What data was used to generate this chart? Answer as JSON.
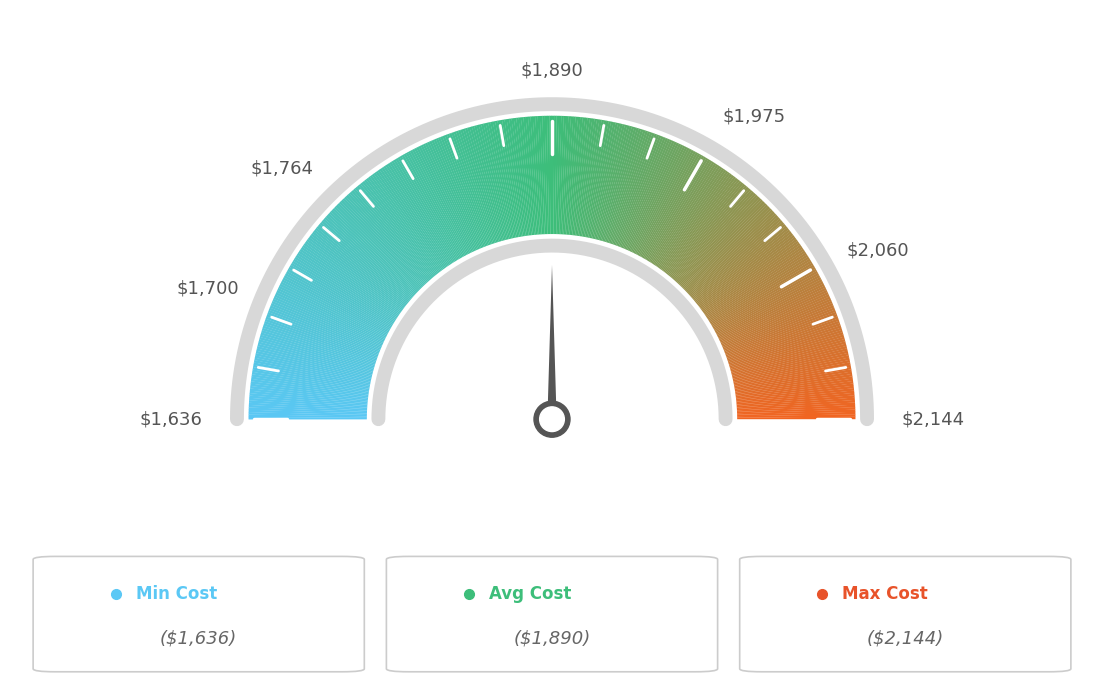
{
  "min_val": 1636,
  "max_val": 2144,
  "avg_val": 1890,
  "needle_val": 1890,
  "label_values": [
    1636,
    1700,
    1764,
    1890,
    1975,
    2060,
    2144
  ],
  "label_texts": [
    "$1,636",
    "$1,700",
    "$1,764",
    "$1,890",
    "$1,975",
    "$2,060",
    "$2,144"
  ],
  "min_cost_label": "Min Cost",
  "avg_cost_label": "Avg Cost",
  "max_cost_label": "Max Cost",
  "min_cost_val": "($1,636)",
  "avg_cost_val": "($1,890)",
  "max_cost_val": "($2,144)",
  "color_blue": "#5BC8F5",
  "color_green": "#3DBE7A",
  "color_orange": "#F26522",
  "dot_min": "#5BC8F5",
  "dot_avg": "#3DBE7A",
  "dot_max": "#E8532A",
  "bg_color": "#FFFFFF",
  "label_color": "#555555",
  "ring_color": "#D8D8D8",
  "needle_color": "#555555"
}
